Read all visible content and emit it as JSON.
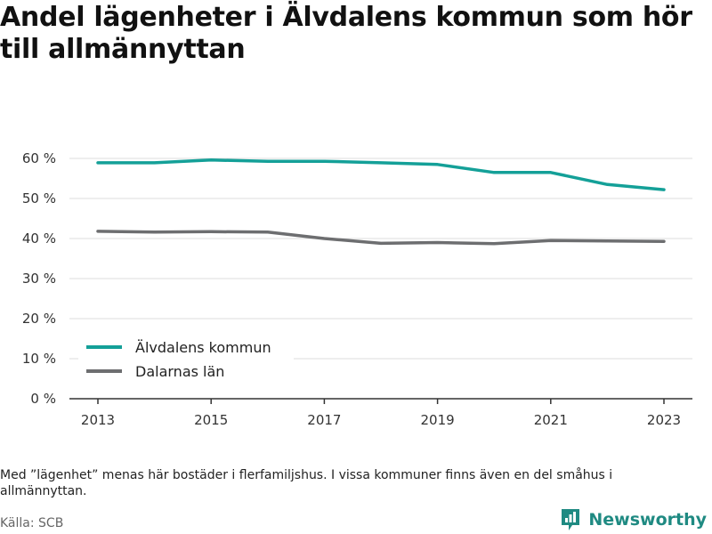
{
  "title": "Andel lägenheter i Älvdalens kommun som hör till allmännyttan",
  "note": "Med ”lägenhet” menas här bostäder i flerfamiljshus. I vissa kommuner finns även en del småhus i allmännyttan.",
  "source": "Källa: SCB",
  "brand": {
    "name": "Newsworthy",
    "icon": "newsworthy-logo-icon",
    "color": "#1f8a82"
  },
  "chart_data": {
    "type": "line",
    "title": "Andel lägenheter i Älvdalens kommun som hör till allmännyttan",
    "xlabel": "",
    "ylabel": "",
    "x": [
      2013,
      2014,
      2015,
      2016,
      2017,
      2018,
      2019,
      2020,
      2021,
      2022,
      2023
    ],
    "x_ticks": [
      "2013",
      "2015",
      "2017",
      "2019",
      "2021",
      "2023"
    ],
    "y_ticks": [
      "0 %",
      "10 %",
      "20 %",
      "30 %",
      "40 %",
      "50 %",
      "60 %"
    ],
    "ylim": [
      0,
      60
    ],
    "grid": true,
    "legend_position": "bottom-left",
    "series": [
      {
        "name": "Älvdalens kommun",
        "color": "#14a098",
        "values": [
          58.9,
          58.9,
          59.6,
          59.3,
          59.3,
          58.9,
          58.5,
          56.5,
          56.5,
          53.5,
          52.2
        ]
      },
      {
        "name": "Dalarnas län",
        "color": "#6d6e70",
        "values": [
          41.8,
          41.6,
          41.7,
          41.6,
          40.0,
          38.8,
          39.0,
          38.7,
          39.5,
          39.4,
          39.3
        ]
      }
    ]
  }
}
